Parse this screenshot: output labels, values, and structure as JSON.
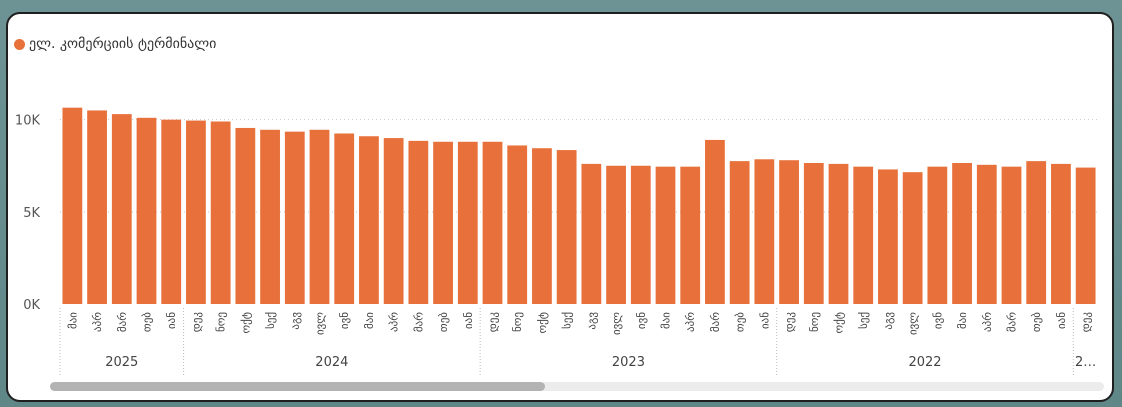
{
  "legend": {
    "label": "ელ. კომერციის ტერმინალი",
    "color": "#e8703a"
  },
  "chart_data": {
    "type": "bar",
    "series_name": "ელ. კომერციის ტერმინალი",
    "bar_color": "#e8703a",
    "ylim": [
      0,
      11500
    ],
    "yticks": [
      {
        "value": 0,
        "label": "0K"
      },
      {
        "value": 5000,
        "label": "5K"
      },
      {
        "value": 10000,
        "label": "10K"
      }
    ],
    "categories": [
      "მაი",
      "აპრ",
      "მარ",
      "თებ",
      "იან",
      "დეკ",
      "ნოე",
      "ოქტ",
      "სექ",
      "აგვ",
      "ივლ",
      "ივნ",
      "მაი",
      "აპრ",
      "მარ",
      "თებ",
      "იან",
      "დეკ",
      "ნოე",
      "ოქტ",
      "სექ",
      "აგვ",
      "ივლ",
      "ივნ",
      "მაი",
      "აპრ",
      "მარ",
      "თებ",
      "იან",
      "დეკ",
      "ნოე",
      "ოქტ",
      "სექ",
      "აგვ",
      "ივლ",
      "ივნ",
      "მაი",
      "აპრ",
      "მარ",
      "თებ",
      "იან",
      "დეკ"
    ],
    "values": [
      10650,
      10500,
      10300,
      10100,
      10000,
      9950,
      9900,
      9550,
      9450,
      9350,
      9450,
      9250,
      9100,
      9000,
      8850,
      8800,
      8800,
      8800,
      8600,
      8450,
      8350,
      7600,
      7500,
      7500,
      7450,
      7450,
      8900,
      7750,
      7850,
      7800,
      7650,
      7600,
      7450,
      7300,
      7150,
      7450,
      7650,
      7550,
      7450,
      7750,
      7600,
      7400
    ],
    "years": [
      {
        "label": "2025",
        "start": 0,
        "count": 5
      },
      {
        "label": "2024",
        "start": 5,
        "count": 12
      },
      {
        "label": "2023",
        "start": 17,
        "count": 12
      },
      {
        "label": "2022",
        "start": 29,
        "count": 12
      },
      {
        "label": "2…",
        "start": 41,
        "count": 1
      }
    ]
  }
}
